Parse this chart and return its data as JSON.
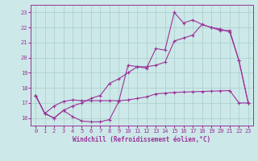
{
  "xlabel": "Windchill (Refroidissement éolien,°C)",
  "bg_color": "#cce8e8",
  "line_color": "#993399",
  "grid_color": "#aacccc",
  "xlim": [
    -0.5,
    23.5
  ],
  "ylim": [
    15.5,
    23.5
  ],
  "yticks": [
    16,
    17,
    18,
    19,
    20,
    21,
    22,
    23
  ],
  "xticks": [
    0,
    1,
    2,
    3,
    4,
    5,
    6,
    7,
    8,
    9,
    10,
    11,
    12,
    13,
    14,
    15,
    16,
    17,
    18,
    19,
    20,
    21,
    22,
    23
  ],
  "series1_x": [
    0,
    1,
    2,
    3,
    4,
    5,
    6,
    7,
    8,
    9,
    10,
    11,
    12,
    13,
    14,
    15,
    16,
    17,
    18,
    19,
    20,
    21,
    22,
    23
  ],
  "series1_y": [
    17.5,
    16.3,
    16.0,
    16.5,
    16.1,
    15.8,
    15.75,
    15.75,
    15.9,
    17.1,
    19.5,
    19.4,
    19.3,
    20.6,
    20.5,
    23.0,
    22.3,
    22.5,
    22.2,
    22.0,
    21.8,
    21.8,
    19.8,
    17.0
  ],
  "series2_x": [
    0,
    1,
    2,
    3,
    4,
    5,
    6,
    7,
    8,
    9,
    10,
    11,
    12,
    13,
    14,
    15,
    16,
    17,
    18,
    19,
    20,
    21,
    22,
    23
  ],
  "series2_y": [
    17.5,
    16.3,
    16.8,
    17.1,
    17.2,
    17.15,
    17.15,
    17.15,
    17.15,
    17.15,
    17.2,
    17.3,
    17.4,
    17.6,
    17.65,
    17.7,
    17.72,
    17.74,
    17.76,
    17.78,
    17.8,
    17.82,
    17.0,
    17.0
  ],
  "series3_x": [
    0,
    1,
    2,
    3,
    4,
    5,
    6,
    7,
    8,
    9,
    10,
    11,
    12,
    13,
    14,
    15,
    16,
    17,
    18,
    19,
    20,
    21,
    22,
    23
  ],
  "series3_y": [
    17.5,
    16.3,
    16.0,
    16.5,
    16.8,
    17.0,
    17.3,
    17.5,
    18.3,
    18.6,
    19.0,
    19.4,
    19.4,
    19.5,
    19.7,
    21.1,
    21.3,
    21.5,
    22.2,
    22.0,
    21.9,
    21.7,
    19.8,
    17.0
  ],
  "xlabel_fontsize": 5.5,
  "tick_fontsize": 5.0,
  "linewidth": 0.8,
  "markersize": 3.5
}
